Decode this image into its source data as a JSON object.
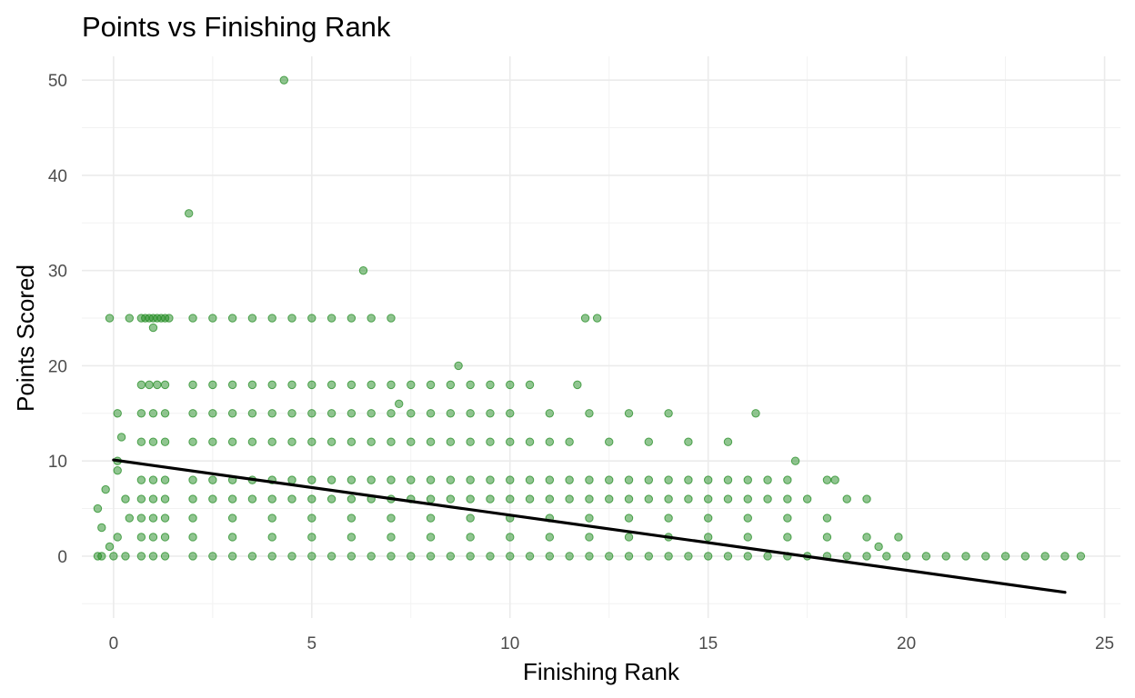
{
  "chart_data": {
    "type": "scatter",
    "title": "Points vs Finishing Rank",
    "xlabel": "Finishing Rank",
    "ylabel": "Points Scored",
    "xlim": [
      -0.8,
      25.4
    ],
    "ylim": [
      -6.5,
      52.5
    ],
    "x_ticks": [
      0,
      5,
      10,
      15,
      20,
      25
    ],
    "y_ticks": [
      0,
      10,
      20,
      30,
      40,
      50
    ],
    "grid": true,
    "legend": "none",
    "point_color": "#228B22",
    "line_color": "#000000",
    "series": [
      {
        "x": [
          4.3,
          1.9,
          6.3,
          -0.1,
          8.7,
          7.2,
          16.2,
          17.2,
          19.0,
          19.8,
          19.3,
          18.2,
          1.0,
          0.2,
          0.1,
          0.1,
          0.4,
          0.7,
          0.8,
          0.9,
          1.0,
          1.1,
          1.2,
          1.3,
          1.4,
          2.0,
          2.5,
          3.0,
          3.5,
          4.0,
          4.5,
          5.0,
          5.5,
          6.0,
          6.5,
          7.0,
          11.9,
          12.2,
          0.7,
          0.9,
          1.1,
          1.3,
          2.0,
          2.5,
          3.0,
          3.5,
          4.0,
          4.5,
          5.0,
          5.5,
          6.0,
          6.5,
          7.0,
          7.5,
          8.0,
          8.5,
          9.0,
          9.5,
          10.0,
          10.5,
          11.7,
          0.7,
          1.0,
          1.3,
          2.0,
          2.5,
          3.0,
          3.5,
          4.0,
          4.5,
          5.0,
          5.5,
          6.0,
          6.5,
          7.0,
          7.5,
          8.0,
          8.5,
          9.0,
          9.5,
          10.0,
          11.0,
          12.0,
          13.0,
          14.0,
          0.7,
          1.0,
          1.3,
          2.0,
          2.5,
          3.0,
          3.5,
          4.0,
          4.5,
          5.0,
          5.5,
          6.0,
          6.5,
          7.0,
          7.5,
          8.0,
          8.5,
          9.0,
          9.5,
          10.0,
          10.5,
          11.0,
          11.5,
          12.5,
          13.5,
          14.5,
          15.5,
          0.7,
          1.0,
          1.3,
          2.0,
          2.5,
          3.0,
          3.5,
          4.0,
          4.5,
          5.0,
          5.5,
          6.0,
          6.5,
          7.0,
          7.5,
          8.0,
          8.5,
          9.0,
          9.5,
          10.0,
          10.5,
          11.0,
          11.5,
          12.0,
          12.5,
          13.0,
          13.5,
          14.0,
          14.5,
          15.0,
          15.5,
          16.0,
          16.5,
          17.0,
          18.0,
          0.7,
          1.0,
          1.3,
          2.0,
          2.5,
          3.0,
          3.5,
          4.0,
          4.5,
          5.0,
          5.5,
          6.0,
          6.5,
          7.0,
          7.5,
          8.0,
          8.5,
          9.0,
          9.5,
          10.0,
          10.5,
          11.0,
          11.5,
          12.0,
          12.5,
          13.0,
          13.5,
          14.0,
          14.5,
          15.0,
          15.5,
          16.0,
          16.5,
          17.0,
          17.5,
          18.5,
          0.7,
          1.0,
          1.3,
          2.0,
          3.0,
          4.0,
          5.0,
          6.0,
          7.0,
          8.0,
          9.0,
          10.0,
          11.0,
          12.0,
          13.0,
          14.0,
          15.0,
          16.0,
          17.0,
          18.0,
          0.7,
          1.0,
          1.3,
          2.0,
          3.0,
          4.0,
          5.0,
          6.0,
          7.0,
          8.0,
          9.0,
          10.0,
          11.0,
          12.0,
          13.0,
          14.0,
          15.0,
          16.0,
          17.0,
          18.0,
          19.0,
          -0.4,
          -0.3,
          0.0,
          0.3,
          0.7,
          1.0,
          1.3,
          2.0,
          2.5,
          3.0,
          3.5,
          4.0,
          4.5,
          5.0,
          5.5,
          6.0,
          6.5,
          7.0,
          7.5,
          8.0,
          8.5,
          9.0,
          9.5,
          10.0,
          10.5,
          11.0,
          11.5,
          12.0,
          12.5,
          13.0,
          13.5,
          14.0,
          14.5,
          15.0,
          15.5,
          16.0,
          16.5,
          17.0,
          17.5,
          18.0,
          18.5,
          19.0,
          19.5,
          20.0,
          20.5,
          21.0,
          21.5,
          22.0,
          22.5,
          23.0,
          23.5,
          24.0,
          24.4,
          -0.4,
          -0.2,
          0.1,
          0.4,
          -0.3,
          0.3,
          0.1,
          -0.1
        ],
        "y": [
          50,
          36,
          30,
          25,
          20,
          16,
          15,
          10,
          6,
          2,
          1,
          8,
          24,
          12.5,
          9,
          15,
          25,
          25,
          25,
          25,
          25,
          25,
          25,
          25,
          25,
          25,
          25,
          25,
          25,
          25,
          25,
          25,
          25,
          25,
          25,
          25,
          25,
          25,
          18,
          18,
          18,
          18,
          18,
          18,
          18,
          18,
          18,
          18,
          18,
          18,
          18,
          18,
          18,
          18,
          18,
          18,
          18,
          18,
          18,
          18,
          18,
          15,
          15,
          15,
          15,
          15,
          15,
          15,
          15,
          15,
          15,
          15,
          15,
          15,
          15,
          15,
          15,
          15,
          15,
          15,
          15,
          15,
          15,
          15,
          15,
          12,
          12,
          12,
          12,
          12,
          12,
          12,
          12,
          12,
          12,
          12,
          12,
          12,
          12,
          12,
          12,
          12,
          12,
          12,
          12,
          12,
          12,
          12,
          12,
          12,
          12,
          12,
          8,
          8,
          8,
          8,
          8,
          8,
          8,
          8,
          8,
          8,
          8,
          8,
          8,
          8,
          8,
          8,
          8,
          8,
          8,
          8,
          8,
          8,
          8,
          8,
          8,
          8,
          8,
          8,
          8,
          8,
          8,
          8,
          8,
          8,
          8,
          6,
          6,
          6,
          6,
          6,
          6,
          6,
          6,
          6,
          6,
          6,
          6,
          6,
          6,
          6,
          6,
          6,
          6,
          6,
          6,
          6,
          6,
          6,
          6,
          6,
          6,
          6,
          6,
          6,
          6,
          6,
          6,
          6,
          6,
          6,
          6,
          4,
          4,
          4,
          4,
          4,
          4,
          4,
          4,
          4,
          4,
          4,
          4,
          4,
          4,
          4,
          4,
          4,
          4,
          4,
          4,
          2,
          2,
          2,
          2,
          2,
          2,
          2,
          2,
          2,
          2,
          2,
          2,
          2,
          2,
          2,
          2,
          2,
          2,
          2,
          2,
          2,
          0,
          0,
          0,
          0,
          0,
          0,
          0,
          0,
          0,
          0,
          0,
          0,
          0,
          0,
          0,
          0,
          0,
          0,
          0,
          0,
          0,
          0,
          0,
          0,
          0,
          0,
          0,
          0,
          0,
          0,
          0,
          0,
          0,
          0,
          0,
          0,
          0,
          0,
          0,
          0,
          0,
          0,
          0,
          0,
          0,
          0,
          0,
          0,
          0,
          0,
          0,
          0,
          0,
          5,
          7,
          10,
          4,
          3,
          6,
          2,
          1
        ]
      }
    ],
    "trend_line": {
      "x": [
        0,
        24
      ],
      "y": [
        10.1,
        -3.8
      ]
    }
  }
}
